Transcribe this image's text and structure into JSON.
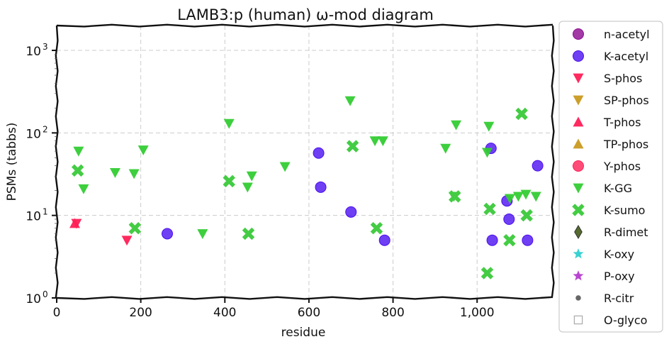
{
  "chart_data": {
    "type": "scatter",
    "title": "LAMB3:p (human) ω-mod diagram",
    "xlabel": "residue",
    "ylabel": "PSMs (tabbs)",
    "xlim": [
      0,
      1180
    ],
    "ylim": [
      1,
      2000
    ],
    "yscale": "log",
    "grid": true,
    "legend_position": "right",
    "x_ticks": [
      0,
      200,
      400,
      600,
      800,
      1000
    ],
    "x_tick_labels": [
      "0",
      "200",
      "400",
      "600",
      "800",
      "1,000"
    ],
    "y_ticks": [
      1,
      10,
      100,
      1000
    ],
    "y_tick_bases": [
      "10",
      "10",
      "10",
      "10"
    ],
    "y_tick_exponents": [
      "0",
      "1",
      "2",
      "3"
    ],
    "series": [
      {
        "name": "n-acetyl",
        "marker": "circle",
        "color": "#8b0a8f",
        "points": []
      },
      {
        "name": "K-acetyl",
        "marker": "circle",
        "color": "#4b0ff0",
        "points": [
          [
            263,
            6
          ],
          [
            623,
            57
          ],
          [
            628,
            22
          ],
          [
            700,
            11
          ],
          [
            780,
            5
          ],
          [
            1033,
            65
          ],
          [
            1036,
            5
          ],
          [
            1071,
            15
          ],
          [
            1076,
            9
          ],
          [
            1120,
            5
          ],
          [
            1144,
            40
          ]
        ]
      },
      {
        "name": "S-phos",
        "marker": "triangle-down",
        "color": "#ff1f55",
        "points": [
          [
            47,
            8
          ],
          [
            167,
            5
          ]
        ]
      },
      {
        "name": "SP-phos",
        "marker": "triangle-down",
        "color": "#c99a20",
        "points": []
      },
      {
        "name": "T-phos",
        "marker": "triangle-up",
        "color": "#ff1f55",
        "points": [
          [
            43,
            8
          ]
        ]
      },
      {
        "name": "TP-phos",
        "marker": "triangle-up",
        "color": "#c99a20",
        "points": []
      },
      {
        "name": "Y-phos",
        "marker": "circle",
        "color": "#ff1f55",
        "points": []
      },
      {
        "name": "K-GG",
        "marker": "triangle-down",
        "color": "#33cc33",
        "points": [
          [
            52,
            60
          ],
          [
            64,
            21
          ],
          [
            139,
            33
          ],
          [
            184,
            32
          ],
          [
            206,
            62
          ],
          [
            347,
            6
          ],
          [
            410,
            130
          ],
          [
            454,
            22
          ],
          [
            464,
            30
          ],
          [
            543,
            39
          ],
          [
            698,
            245
          ],
          [
            757,
            80
          ],
          [
            776,
            80
          ],
          [
            925,
            65
          ],
          [
            950,
            125
          ],
          [
            945,
            17
          ],
          [
            1024,
            58
          ],
          [
            1028,
            120
          ],
          [
            1078,
            16
          ],
          [
            1098,
            17
          ],
          [
            1116,
            18
          ],
          [
            1140,
            17
          ]
        ]
      },
      {
        "name": "K-sumo",
        "marker": "cross",
        "color": "#44cc44",
        "points": [
          [
            50,
            35
          ],
          [
            186,
            7
          ],
          [
            410,
            26
          ],
          [
            456,
            6
          ],
          [
            704,
            69
          ],
          [
            761,
            7
          ],
          [
            947,
            17
          ],
          [
            1024,
            2
          ],
          [
            1030,
            12
          ],
          [
            1077,
            5
          ],
          [
            1106,
            170
          ],
          [
            1118,
            10
          ]
        ]
      },
      {
        "name": "R-dimet",
        "marker": "diamond",
        "color": "#556b2f",
        "points": []
      },
      {
        "name": "K-oxy",
        "marker": "star",
        "color": "#22cccc",
        "points": []
      },
      {
        "name": "P-oxy",
        "marker": "star",
        "color": "#b030cc",
        "points": []
      },
      {
        "name": "R-citr",
        "marker": "dot",
        "color": "#666666",
        "points": []
      },
      {
        "name": "O-glyco",
        "marker": "square-open",
        "color": "#aaaaaa",
        "points": []
      }
    ]
  }
}
